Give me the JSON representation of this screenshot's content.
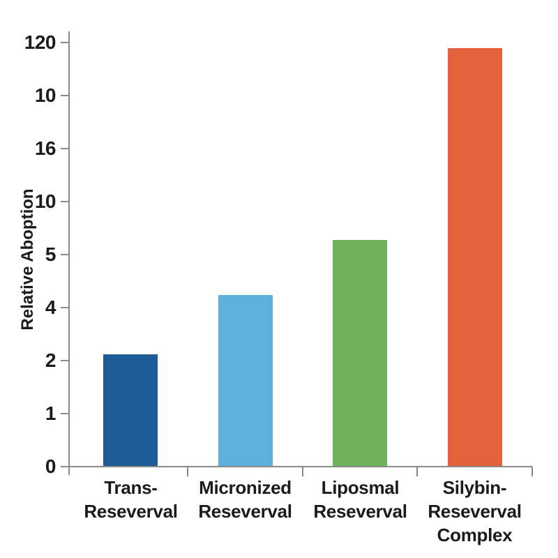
{
  "chart_data": {
    "type": "bar",
    "title": "",
    "xlabel": "",
    "ylabel": "Relative Aboption",
    "categories": [
      "Trans-\nReseverval",
      "Micronized\nReseverval",
      "Liposmal\nReseverval",
      "Silybin-\nReseverval\nComplex"
    ],
    "values_in_tick_units": [
      2.12,
      3.24,
      4.28,
      7.9
    ],
    "values_as_read_from_axis": [
      "2.1",
      "4.2",
      "5.2",
      "115"
    ],
    "y_tick_labels_bottom_to_top": [
      "0",
      "1",
      "2",
      "4",
      "5",
      "10",
      "16",
      "10",
      "120"
    ],
    "bar_colors": [
      "#1e5b97",
      "#5bb1db",
      "#70b25b",
      "#e5613c"
    ],
    "axis_color": "#8a8a8a",
    "text_color": "#1b1b1b",
    "background": "#ffffff",
    "grid": false,
    "legend": false
  }
}
